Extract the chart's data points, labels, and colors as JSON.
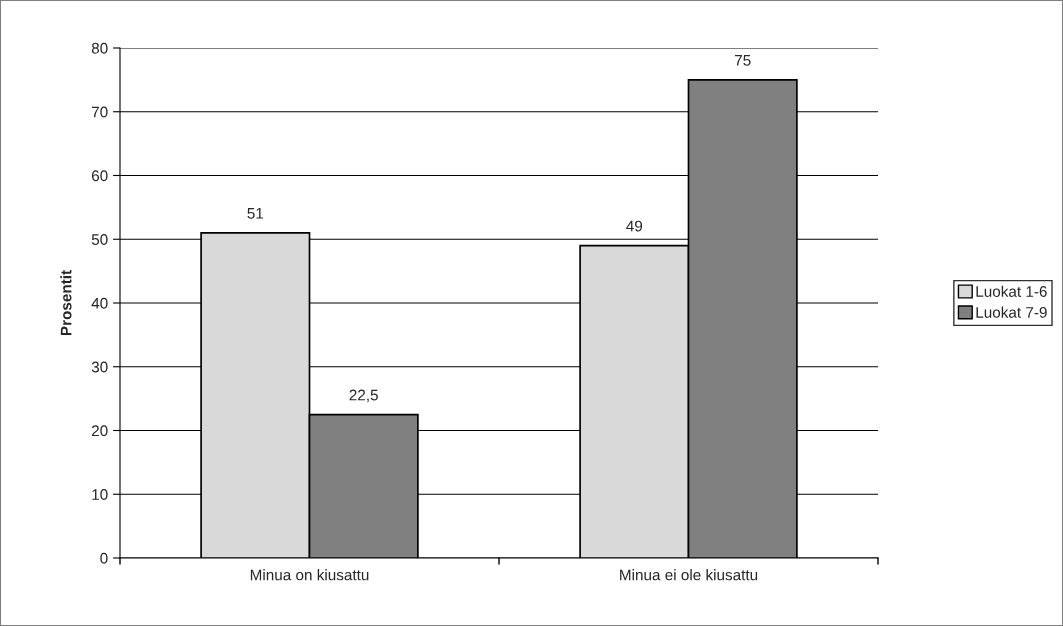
{
  "chart_data": {
    "type": "bar",
    "ylabel": "Prosentit",
    "categories": [
      "Minua on kiusattu",
      "Minua ei ole kiusattu"
    ],
    "series": [
      {
        "name": "Luokat 1-6",
        "color": "#d9d9d9",
        "values": [
          51,
          49
        ],
        "value_labels": [
          "51",
          "49"
        ]
      },
      {
        "name": "Luokat 7-9",
        "color": "#808080",
        "values": [
          22.5,
          75
        ],
        "value_labels": [
          "22,5",
          "75"
        ]
      }
    ],
    "ylim": [
      0,
      80
    ],
    "yticks": [
      0,
      10,
      20,
      30,
      40,
      50,
      60,
      70,
      80
    ],
    "grid": "y",
    "legend": "right"
  }
}
